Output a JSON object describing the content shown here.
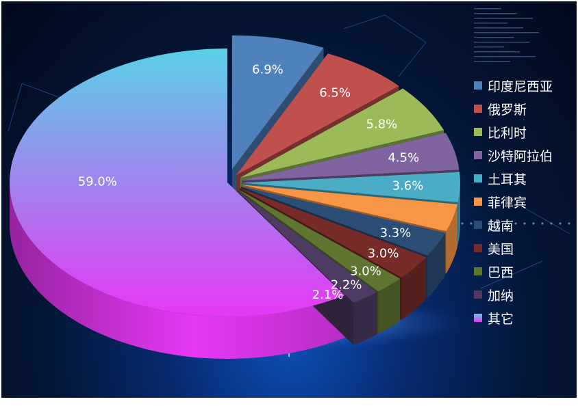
{
  "chart_data": {
    "type": "pie",
    "style": "3d-exploded",
    "categories": [
      "印度尼西亚",
      "俄罗斯",
      "比利时",
      "沙特阿拉伯",
      "土耳其",
      "菲律宾",
      "越南",
      "美国",
      "巴西",
      "加纳",
      "其它"
    ],
    "values": [
      6.9,
      6.5,
      5.8,
      4.5,
      3.6,
      3.3,
      3.0,
      3.0,
      2.2,
      2.1,
      59.0
    ],
    "labels": [
      "6.9%",
      "6.5%",
      "5.8%",
      "4.5%",
      "3.6%",
      "3.3%",
      "3.0%",
      "3.0%",
      "2.2%",
      "2.1%",
      "59.0%"
    ],
    "colors": [
      "#4f81bd",
      "#c0504d",
      "#9bbb59",
      "#8064a2",
      "#4bacc6",
      "#f79646",
      "#2c4d75",
      "#772c2a",
      "#5f7530",
      "#4d3b62",
      "#e040fb"
    ],
    "other_gradient": [
      "#5ad0e6",
      "#e638f5"
    ],
    "unit": "%",
    "legend_position": "right"
  }
}
